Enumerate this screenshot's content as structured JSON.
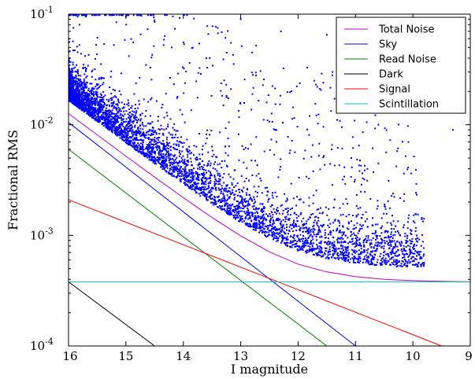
{
  "chart_data": {
    "type": "scatter",
    "title": "",
    "xlabel": "I magnitude",
    "ylabel": "Fractional RMS",
    "xlim": [
      16,
      9
    ],
    "x_inverted": true,
    "ylim": [
      0.0001,
      0.1
    ],
    "y_scale": "log",
    "x_ticks": [
      16,
      15,
      14,
      13,
      12,
      11,
      10,
      9
    ],
    "x_tick_labels": [
      "16",
      "15",
      "14",
      "13",
      "12",
      "11",
      "10",
      "9"
    ],
    "y_ticks": [
      0.0001,
      0.001,
      0.01,
      0.1
    ],
    "y_tick_labels": [
      {
        "base": "10",
        "exp": "-4"
      },
      {
        "base": "10",
        "exp": "-3"
      },
      {
        "base": "10",
        "exp": "-2"
      },
      {
        "base": "10",
        "exp": "-1"
      }
    ],
    "grid": false,
    "legend_position": "top-right",
    "series": [
      {
        "name": "Total Noise",
        "color": "#bf00bf",
        "x": [
          16,
          15.5,
          15,
          14.5,
          14,
          13.5,
          13,
          12.5,
          12,
          11.5,
          11,
          10.5,
          10,
          9.5,
          9
        ],
        "y": [
          0.0126,
          0.0081,
          0.0052,
          0.00336,
          0.00219,
          0.00145,
          0.00099,
          0.00071,
          0.00055,
          0.000467,
          0.000424,
          0.000401,
          0.00039,
          0.000384,
          0.00038
        ]
      },
      {
        "name": "Sky",
        "color": "#0000ff",
        "x": [
          16,
          11
        ],
        "y": [
          0.0105,
          0.0001
        ]
      },
      {
        "name": "Read Noise",
        "color": "#008000",
        "x": [
          16,
          11.5
        ],
        "y": [
          0.006,
          0.0001
        ]
      },
      {
        "name": "Dark",
        "color": "#000000",
        "x": [
          16,
          14.5
        ],
        "y": [
          0.00038,
          0.0001
        ]
      },
      {
        "name": "Signal",
        "color": "#ff0000",
        "x": [
          16,
          9.5
        ],
        "y": [
          0.0021,
          0.0001
        ]
      },
      {
        "name": "Scintillation",
        "color": "#00bfbf",
        "x": [
          16,
          9
        ],
        "y": [
          0.00038,
          0.00038
        ]
      }
    ],
    "scatter": {
      "color": "#0000ff",
      "description_points": [
        {
          "x": 15.7,
          "y": 0.095
        },
        {
          "x": 15.0,
          "y": 0.095
        },
        {
          "x": 14.5,
          "y": 0.085
        },
        {
          "x": 13.4,
          "y": 0.075
        },
        {
          "x": 13.0,
          "y": 0.09
        },
        {
          "x": 12.3,
          "y": 0.07
        },
        {
          "x": 11.5,
          "y": 0.065
        },
        {
          "x": 14.2,
          "y": 0.05
        },
        {
          "x": 13.6,
          "y": 0.04
        },
        {
          "x": 12.8,
          "y": 0.045
        },
        {
          "x": 11.4,
          "y": 0.03
        },
        {
          "x": 10.8,
          "y": 0.025
        },
        {
          "x": 9.9,
          "y": 0.03
        },
        {
          "x": 9.3,
          "y": 0.009
        },
        {
          "x": 10.6,
          "y": 0.01
        },
        {
          "x": 11.8,
          "y": 0.012
        },
        {
          "x": 12.4,
          "y": 0.009
        },
        {
          "x": 13.3,
          "y": 0.015
        }
      ]
    }
  }
}
